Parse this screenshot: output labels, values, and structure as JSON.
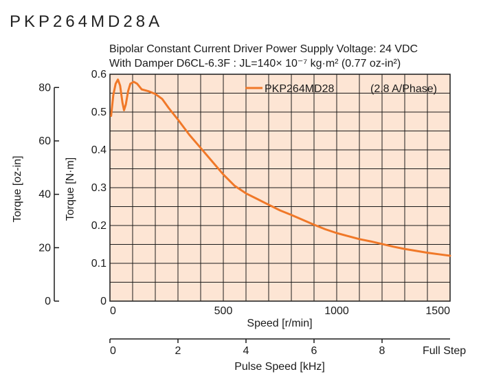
{
  "model": "PKP264MD28A",
  "subtitle_line1": "Bipolar Constant Current Driver  Power Supply Voltage: 24 VDC",
  "subtitle_line2": "With Damper D6CL-6.3F    : JL=140× 10⁻⁷ kg·m² (0.77 oz-in²)",
  "colors": {
    "curve": "#f07828",
    "plot_bg": "#fde5d4",
    "grid": "#1a1a1a"
  },
  "chart_data": {
    "type": "line",
    "xlabel": "Speed [r/min]",
    "xlim": [
      0,
      1500
    ],
    "x_ticks": [
      0,
      500,
      1000,
      1500
    ],
    "ylabel": "Torque [N·m]",
    "ylim": [
      0,
      0.6
    ],
    "y_ticks": [
      "0",
      "0.1",
      "0.2",
      "0.3",
      "0.4",
      "0.5",
      "0.6"
    ],
    "y2label": "Torque [oz-in]",
    "y2_ticks": [
      0,
      20,
      40,
      60,
      80
    ],
    "x2label": "Pulse Speed [kHz]",
    "x2_end_label": "Full Step",
    "x2_ticks": [
      0,
      2,
      4,
      6,
      8
    ],
    "grid": true,
    "legend_position": "top-right",
    "series": [
      {
        "name": "PKP264MD28",
        "annotation": "(2.8 A/Phase)",
        "x": [
          5,
          15,
          25,
          35,
          45,
          55,
          62,
          70,
          80,
          90,
          105,
          120,
          140,
          170,
          200,
          230,
          260,
          300,
          350,
          400,
          450,
          500,
          550,
          600,
          650,
          700,
          750,
          800,
          850,
          900,
          950,
          1000,
          1050,
          1100,
          1150,
          1200,
          1250,
          1300,
          1350,
          1400,
          1450,
          1500
        ],
        "values": [
          0.49,
          0.545,
          0.575,
          0.586,
          0.57,
          0.525,
          0.505,
          0.52,
          0.555,
          0.575,
          0.58,
          0.575,
          0.56,
          0.555,
          0.548,
          0.535,
          0.51,
          0.48,
          0.44,
          0.405,
          0.37,
          0.335,
          0.305,
          0.285,
          0.27,
          0.255,
          0.24,
          0.228,
          0.215,
          0.202,
          0.19,
          0.18,
          0.172,
          0.164,
          0.158,
          0.151,
          0.144,
          0.138,
          0.133,
          0.128,
          0.124,
          0.12
        ]
      }
    ]
  }
}
